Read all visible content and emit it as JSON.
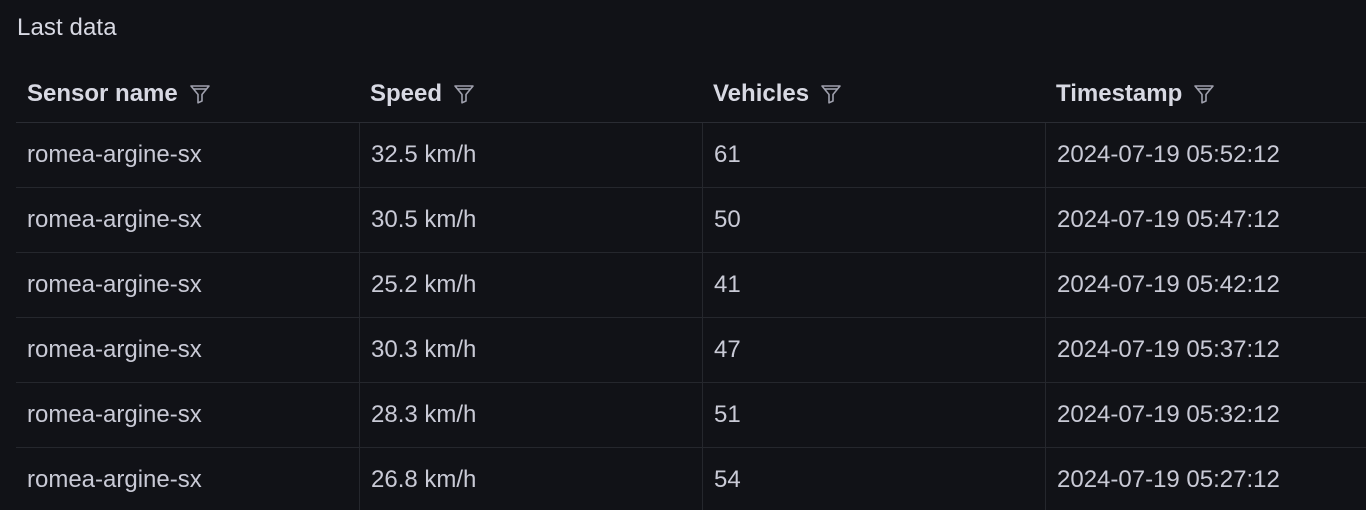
{
  "panel": {
    "title": "Last data"
  },
  "table": {
    "columns": [
      {
        "label": "Sensor name",
        "filter_icon": "filter-icon"
      },
      {
        "label": "Speed",
        "filter_icon": "filter-icon"
      },
      {
        "label": "Vehicles",
        "filter_icon": "filter-icon"
      },
      {
        "label": "Timestamp",
        "filter_icon": "filter-icon"
      }
    ],
    "rows": [
      [
        "romea-argine-sx",
        "32.5 km/h",
        "61",
        "2024-07-19 05:52:12"
      ],
      [
        "romea-argine-sx",
        "30.5 km/h",
        "50",
        "2024-07-19 05:47:12"
      ],
      [
        "romea-argine-sx",
        "25.2 km/h",
        "41",
        "2024-07-19 05:42:12"
      ],
      [
        "romea-argine-sx",
        "30.3 km/h",
        "47",
        "2024-07-19 05:37:12"
      ],
      [
        "romea-argine-sx",
        "28.3 km/h",
        "51",
        "2024-07-19 05:32:12"
      ],
      [
        "romea-argine-sx",
        "26.8 km/h",
        "54",
        "2024-07-19 05:27:12"
      ]
    ]
  },
  "colors": {
    "background": "#111217",
    "text": "#ccccdc",
    "border": "#25272d"
  }
}
